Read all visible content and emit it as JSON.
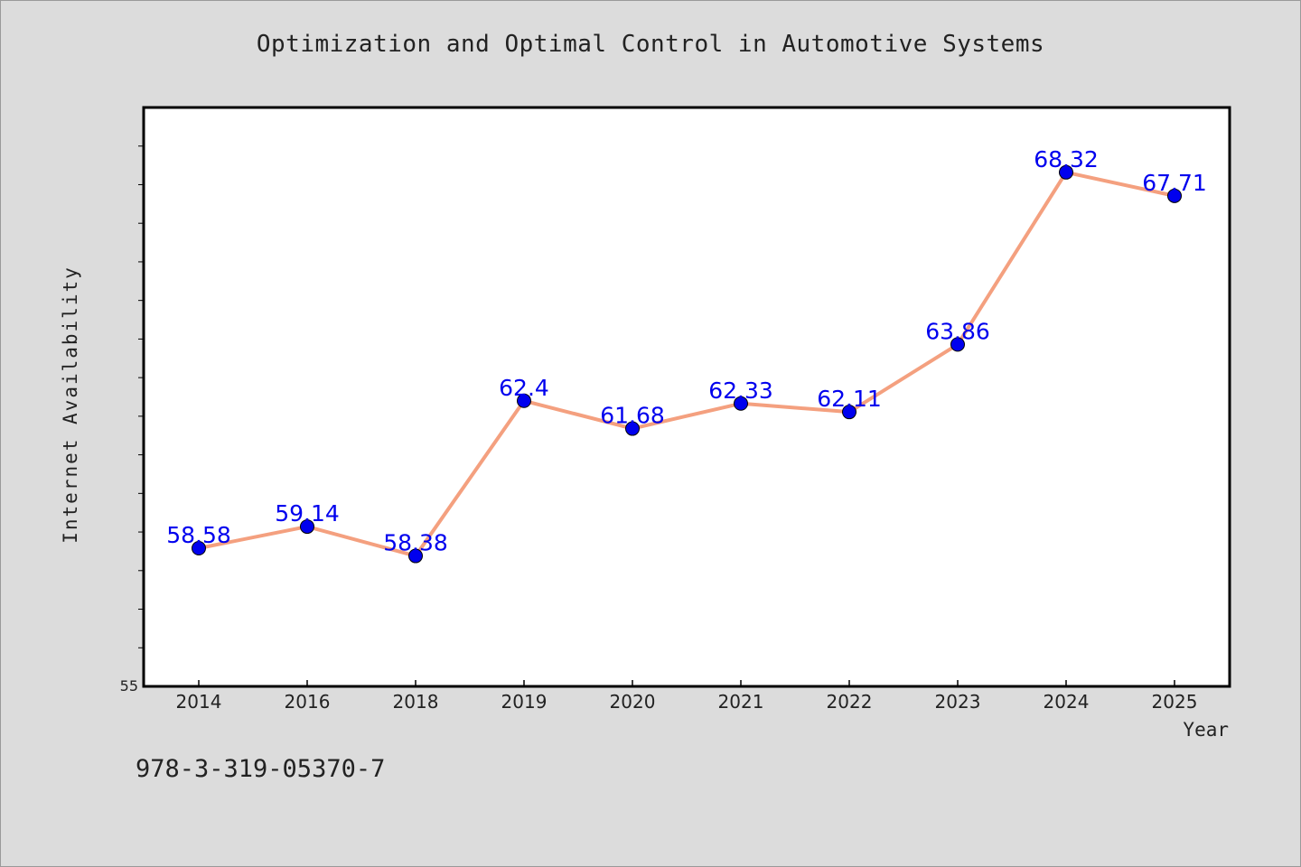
{
  "chart_data": {
    "type": "line",
    "title": "Optimization and Optimal Control in Automotive Systems",
    "xlabel": "Year",
    "ylabel": "Internet Availability",
    "categories": [
      "2014",
      "2016",
      "2018",
      "2019",
      "2020",
      "2021",
      "2022",
      "2023",
      "2024",
      "2025"
    ],
    "series": [
      {
        "values": [
          58.58,
          59.14,
          58.38,
          62.4,
          61.68,
          62.33,
          62.11,
          63.86,
          68.32,
          67.71
        ],
        "labels": [
          "58.58",
          "59.14",
          "58.38",
          "62.4",
          "61.68",
          "62.33",
          "62.11",
          "63.86",
          "68.32",
          "67.71"
        ]
      }
    ],
    "ylim": [
      55,
      70
    ],
    "y_tick_labels": [
      "55"
    ],
    "grid": false,
    "colors": {
      "line": "#f4a07f",
      "marker": "#0000ee",
      "label": "#0000ee",
      "background": "#dcdcdc",
      "plot_bg": "#ffffff"
    }
  },
  "footer": {
    "isbn": "978-3-319-05370-7"
  }
}
